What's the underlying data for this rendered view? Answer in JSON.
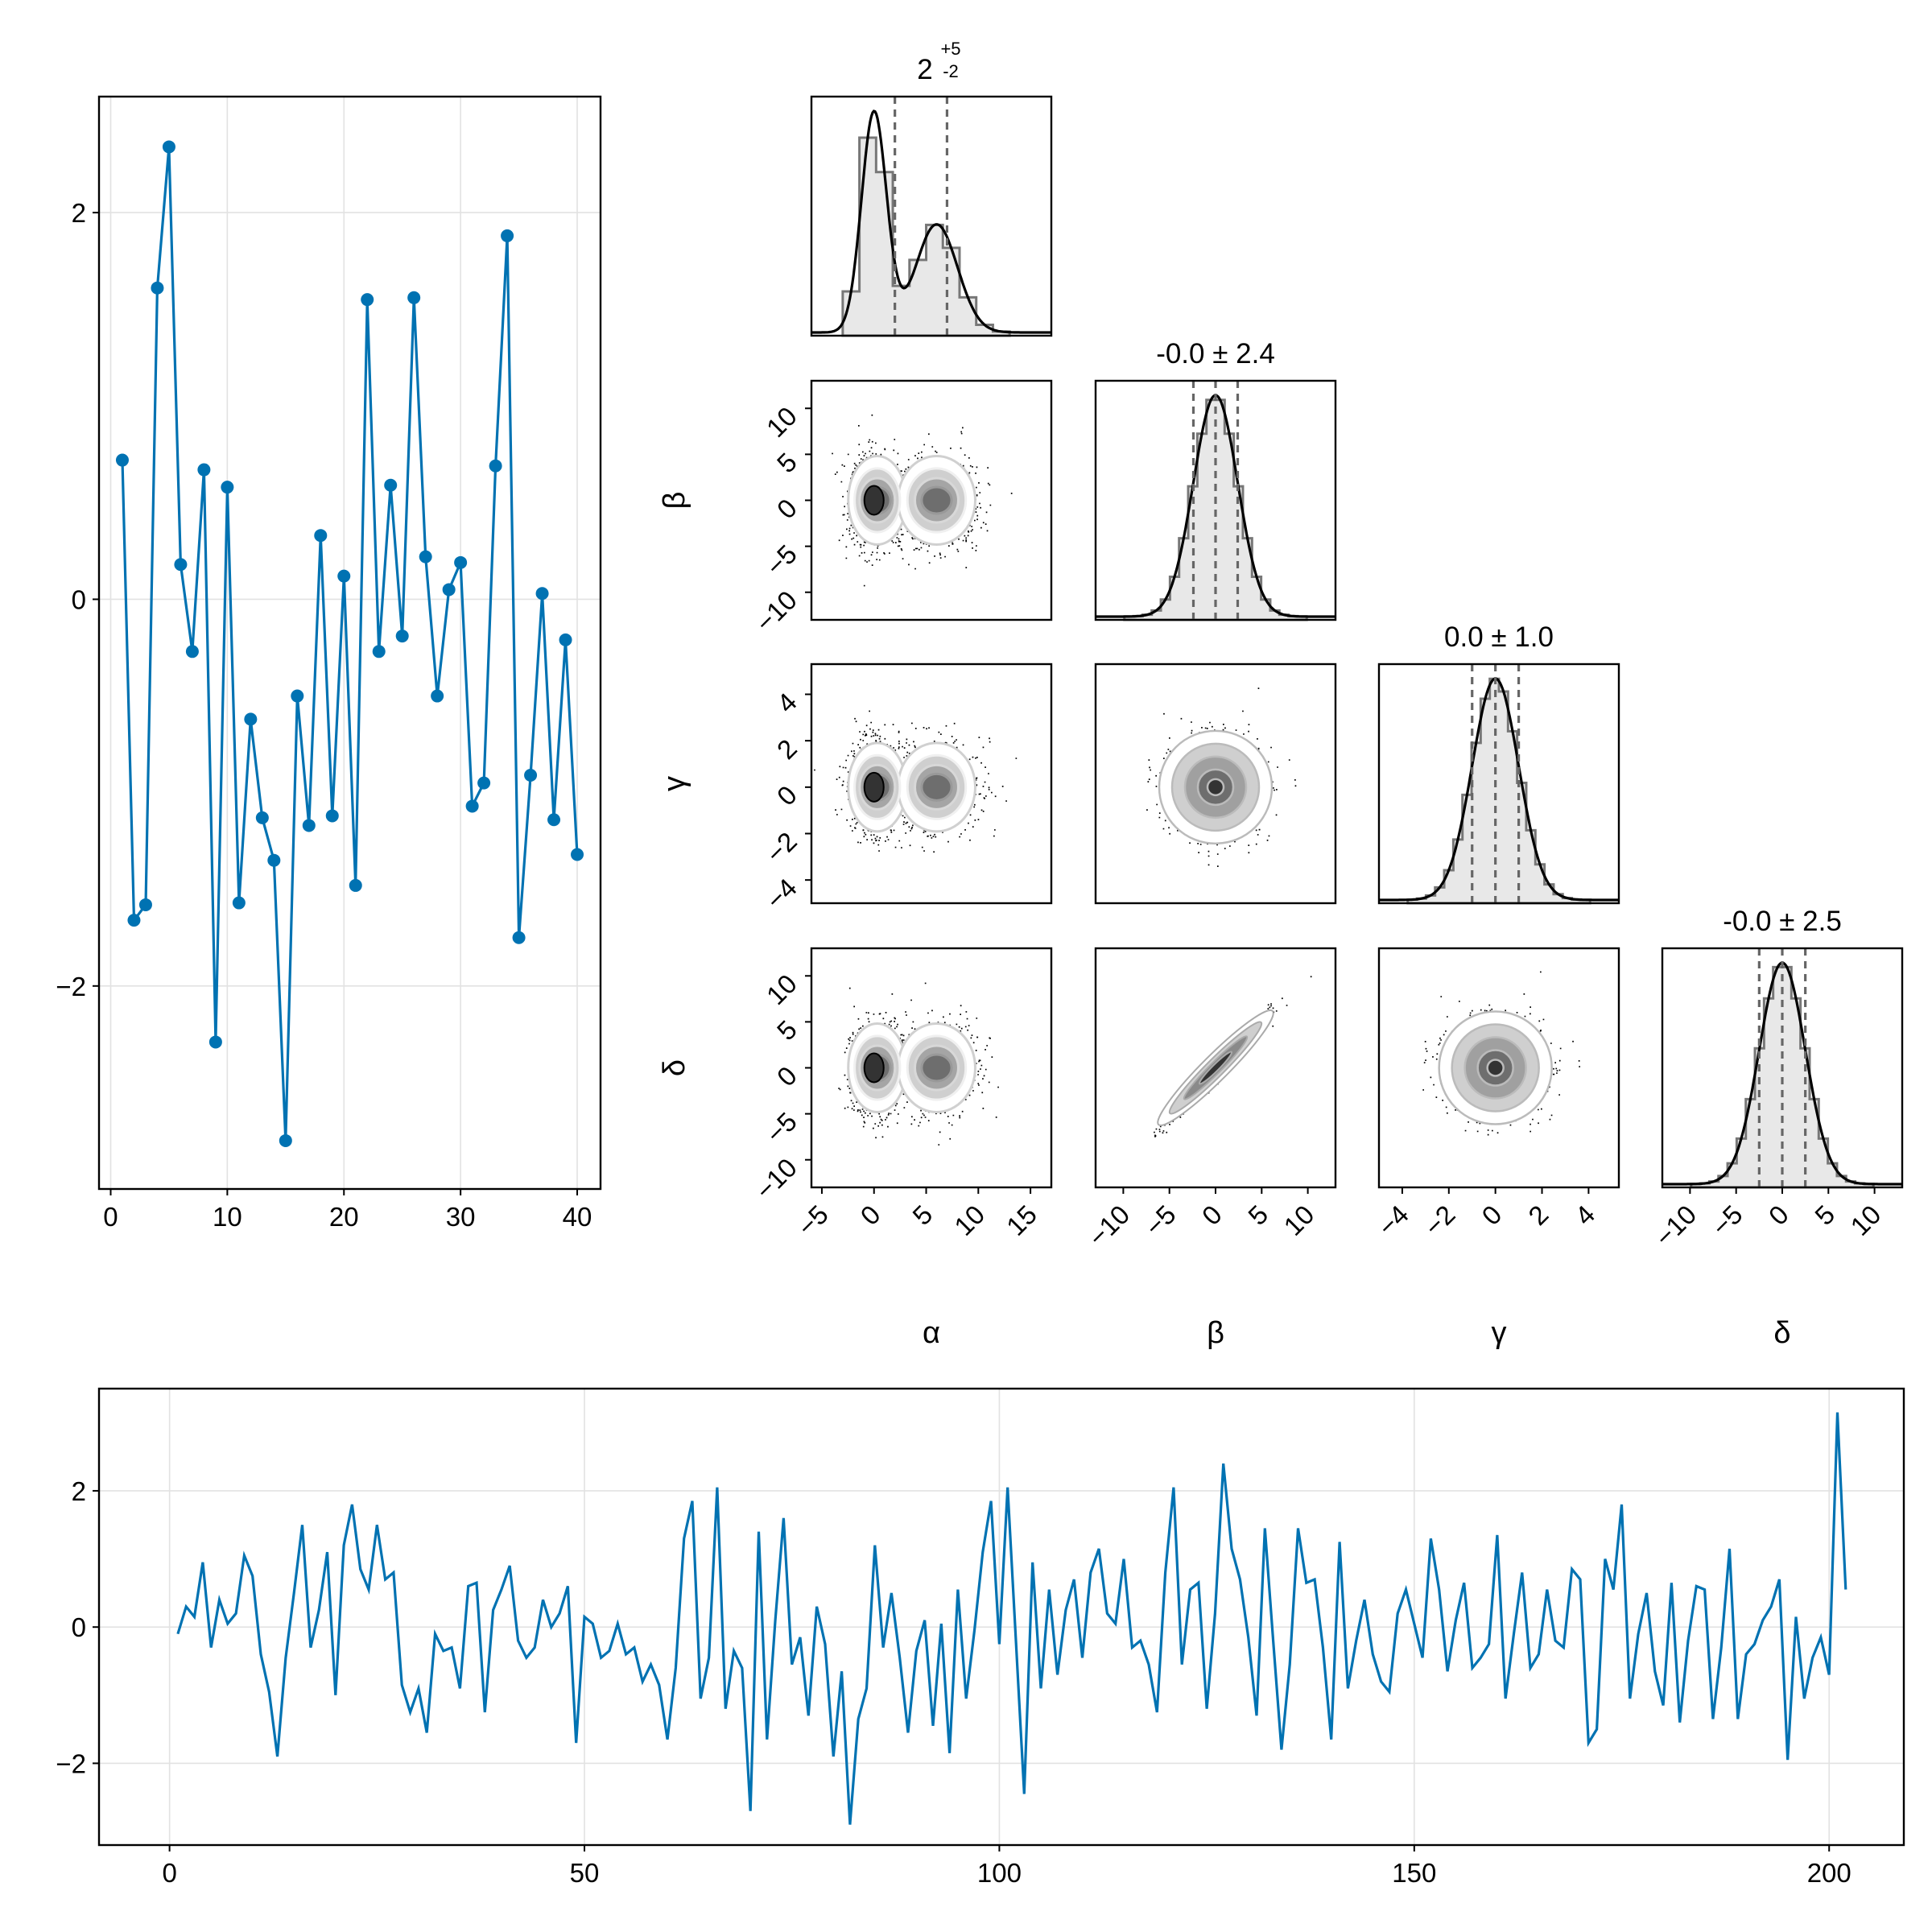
{
  "chart_data": [
    {
      "type": "line",
      "markers": true,
      "x": [
        1,
        2,
        3,
        4,
        5,
        6,
        7,
        8,
        9,
        10,
        11,
        12,
        13,
        14,
        15,
        16,
        17,
        18,
        19,
        20,
        21,
        22,
        23,
        24,
        25,
        26,
        27,
        28,
        29,
        30,
        31,
        32,
        33,
        34,
        35,
        36,
        37,
        38,
        39,
        40
      ],
      "values": [
        0.72,
        -1.66,
        -1.58,
        1.61,
        2.34,
        0.18,
        -0.27,
        0.67,
        -2.29,
        0.58,
        -1.57,
        -0.62,
        -1.13,
        -1.35,
        -2.8,
        -0.5,
        -1.17,
        0.33,
        -1.12,
        0.12,
        -1.48,
        1.55,
        -0.27,
        0.59,
        -0.19,
        1.56,
        0.22,
        -0.5,
        0.05,
        0.19,
        -1.07,
        -0.95,
        0.69,
        1.88,
        -1.75,
        -0.91,
        0.03,
        -1.14,
        -0.21,
        -1.32
      ],
      "xlim": [
        -1,
        42
      ],
      "ylim": [
        -3.05,
        2.6
      ],
      "xticks": [
        0,
        10,
        20,
        30,
        40
      ],
      "yticks": [
        2,
        0,
        -2
      ],
      "ytick_labels": [
        "2",
        "0",
        "−2"
      ],
      "grid": true,
      "color": "#0072b2"
    },
    {
      "type": "corner",
      "parameters": [
        "α",
        "β",
        "γ",
        "δ"
      ],
      "titles": [
        "2",
        "-0.0 ± 2.4",
        "0.0 ± 1.0",
        "-0.0 ± 2.5"
      ],
      "title_sup": "+5",
      "title_sub": "-2",
      "quantile_lines": [
        [
          2,
          7
        ],
        [
          -2.4,
          0,
          2.4
        ],
        [
          -1,
          0,
          1
        ],
        [
          -2.5,
          0,
          2.5
        ]
      ],
      "axis_ranges": {
        "α": [
          -6,
          17
        ],
        "β": [
          -13,
          13
        ],
        "γ": [
          -5,
          5.3
        ],
        "δ": [
          -13,
          13
        ]
      },
      "x_tick_values": {
        "α": [
          -5,
          0,
          5,
          10,
          15
        ],
        "β": [
          -10,
          -5,
          0,
          5,
          10
        ],
        "γ": [
          -4,
          -2,
          0,
          2,
          4
        ],
        "δ": [
          -10,
          -5,
          0,
          5,
          10
        ]
      },
      "x_tick_labels": {
        "α": [
          "−5",
          "0",
          "5",
          "10",
          "15"
        ],
        "β": [
          "−10",
          "−5",
          "0",
          "5",
          "10"
        ],
        "γ": [
          "−4",
          "−2",
          "0",
          "2",
          "4"
        ],
        "δ": [
          "−10",
          "−5",
          "0",
          "5",
          "10"
        ]
      },
      "y_tick_values": {
        "β": [
          10,
          5,
          0,
          -5,
          -10
        ],
        "γ": [
          4,
          2,
          0,
          -2,
          -4
        ],
        "δ": [
          10,
          5,
          0,
          -5,
          -10
        ]
      },
      "y_tick_labels": {
        "β": [
          "10",
          "5",
          "0",
          "−5",
          "−10"
        ],
        "γ": [
          "4",
          "2",
          "0",
          "−2",
          "−4"
        ],
        "δ": [
          "10",
          "5",
          "0",
          "−5",
          "−10"
        ]
      },
      "pair_kinds": {
        "β|α": "bimodal",
        "γ|α": "bimodal",
        "δ|α": "bimodal",
        "γ|β": "round",
        "δ|β": "correlated",
        "δ|γ": "round"
      }
    },
    {
      "type": "line",
      "markers": false,
      "x_start": 1,
      "values": [
        -0.1,
        0.3,
        0.15,
        0.95,
        -0.3,
        0.4,
        0.05,
        0.2,
        1.05,
        0.75,
        -0.4,
        -0.95,
        -1.9,
        -0.45,
        0.5,
        1.5,
        -0.3,
        0.25,
        1.1,
        -1.0,
        1.2,
        1.8,
        0.85,
        0.55,
        1.5,
        0.7,
        0.8,
        -0.85,
        -1.25,
        -0.9,
        -1.55,
        -0.1,
        -0.35,
        -0.3,
        -0.9,
        0.6,
        0.65,
        -1.25,
        0.25,
        0.55,
        0.9,
        -0.2,
        -0.45,
        -0.3,
        0.4,
        0.0,
        0.2,
        0.6,
        -1.7,
        0.15,
        0.05,
        -0.45,
        -0.35,
        0.05,
        -0.4,
        -0.3,
        -0.8,
        -0.55,
        -0.85,
        -1.65,
        -0.6,
        1.3,
        1.85,
        -1.05,
        -0.45,
        2.05,
        -1.2,
        -0.35,
        -0.6,
        -2.7,
        1.4,
        -1.65,
        0.1,
        1.6,
        -0.55,
        -0.15,
        -1.3,
        0.3,
        -0.25,
        -1.9,
        -0.65,
        -2.9,
        -1.35,
        -0.9,
        1.2,
        -0.3,
        0.5,
        -0.45,
        -1.55,
        -0.35,
        0.1,
        -1.45,
        0.05,
        -1.85,
        0.55,
        -1.05,
        -0.05,
        1.1,
        1.85,
        -0.25,
        2.05,
        -0.2,
        -2.45,
        0.95,
        -0.9,
        0.55,
        -0.7,
        0.25,
        0.7,
        -0.45,
        0.8,
        1.15,
        0.2,
        0.05,
        1.0,
        -0.3,
        -0.2,
        -0.55,
        -1.25,
        0.8,
        2.05,
        -0.55,
        0.55,
        0.65,
        -1.2,
        0.2,
        2.4,
        1.15,
        0.7,
        -0.15,
        -1.3,
        1.45,
        -0.2,
        -1.8,
        -0.55,
        1.45,
        0.65,
        0.7,
        -0.3,
        -1.65,
        1.25,
        -0.9,
        -0.2,
        0.4,
        -0.4,
        -0.8,
        -0.95,
        0.2,
        0.55,
        0.05,
        -0.45,
        1.3,
        0.55,
        -0.65,
        0.1,
        0.65,
        -0.6,
        -0.45,
        -0.25,
        1.35,
        -1.05,
        -0.1,
        0.8,
        -0.6,
        -0.4,
        0.55,
        -0.2,
        -0.3,
        0.85,
        0.7,
        -1.7,
        -1.5,
        1.0,
        0.55,
        1.8,
        -1.05,
        -0.1,
        0.5,
        -0.65,
        -1.15,
        0.65,
        -1.4,
        -0.2,
        0.6,
        0.55,
        -1.35,
        -0.3,
        1.15,
        -1.35,
        -0.4,
        -0.25,
        0.1,
        0.3,
        0.7,
        -1.95,
        0.15,
        -1.05,
        -0.45,
        -0.15,
        -0.7,
        3.15,
        0.55
      ],
      "xlim": [
        -8.5,
        209
      ],
      "ylim": [
        -3.2,
        3.5
      ],
      "xticks": [
        0,
        50,
        100,
        150,
        200
      ],
      "yticks": [
        2,
        0,
        -2
      ],
      "ytick_labels": [
        "2",
        "0",
        "−2"
      ],
      "grid": true,
      "color": "#0072b2"
    }
  ]
}
